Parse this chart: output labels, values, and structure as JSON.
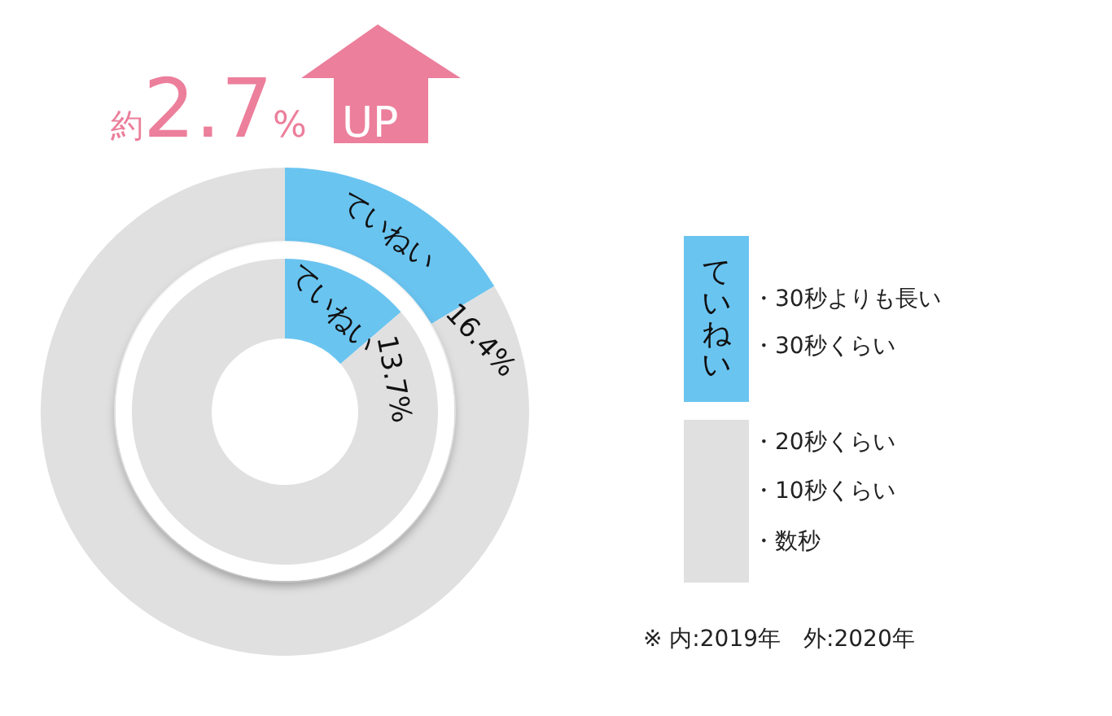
{
  "chart_data": [
    {
      "type": "donut",
      "title": "約2.7% UP",
      "categories": [
        "ていねい",
        null
      ],
      "values": [
        16.4,
        83.6
      ],
      "colors": [
        "#6ac4f0",
        "#e0e0e0"
      ],
      "value_labels": [
        "16.4%",
        null
      ],
      "annotations": [
        "・30秒よりも長い",
        "・30秒くらい",
        "・20秒くらい",
        "・10秒くらい",
        "・数秒",
        "※ 内:2019年　外:2020年"
      ]
    },
    {
      "type": "donut",
      "categories": [
        "ていねい",
        null
      ],
      "values": [
        13.7,
        86.3
      ],
      "colors": [
        "#6ac4f0",
        "#e0e0e0"
      ],
      "value_labels": [
        "13.7%",
        null
      ]
    }
  ]
}
